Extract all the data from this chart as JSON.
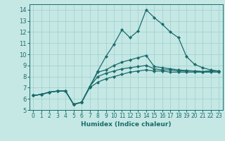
{
  "title": "",
  "xlabel": "Humidex (Indice chaleur)",
  "ylabel": "",
  "xlim": [
    -0.5,
    23.5
  ],
  "ylim": [
    5,
    14.5
  ],
  "yticks": [
    5,
    6,
    7,
    8,
    9,
    10,
    11,
    12,
    13,
    14
  ],
  "xticks": [
    0,
    1,
    2,
    3,
    4,
    5,
    6,
    7,
    8,
    9,
    10,
    11,
    12,
    13,
    14,
    15,
    16,
    17,
    18,
    19,
    20,
    21,
    22,
    23
  ],
  "bg_color": "#c5e8e5",
  "line_color": "#1a6b6b",
  "grid_color": "#9dcfcc",
  "lines": [
    [
      0,
      6.3,
      1,
      6.4,
      2,
      6.6,
      3,
      6.7,
      4,
      6.7,
      5,
      5.5,
      6,
      5.7,
      7,
      7.1,
      8,
      8.5,
      9,
      9.8,
      10,
      10.9,
      11,
      12.2,
      12,
      11.5,
      13,
      12.1,
      14,
      14.0,
      15,
      13.3,
      16,
      12.7,
      17,
      12.0,
      18,
      11.5,
      19,
      9.8,
      20,
      9.1,
      21,
      8.8,
      22,
      8.6,
      23,
      8.5
    ],
    [
      0,
      6.3,
      1,
      6.4,
      2,
      6.6,
      3,
      6.7,
      4,
      6.7,
      5,
      5.5,
      6,
      5.7,
      7,
      7.1,
      8,
      8.4,
      9,
      8.6,
      10,
      9.0,
      11,
      9.3,
      12,
      9.5,
      13,
      9.7,
      14,
      9.9,
      15,
      8.9,
      16,
      8.8,
      17,
      8.7,
      18,
      8.6,
      19,
      8.55,
      20,
      8.5,
      21,
      8.45,
      22,
      8.5,
      23,
      8.5
    ],
    [
      0,
      6.3,
      1,
      6.4,
      2,
      6.6,
      3,
      6.7,
      4,
      6.7,
      5,
      5.5,
      6,
      5.7,
      7,
      7.1,
      8,
      8.0,
      9,
      8.3,
      10,
      8.5,
      11,
      8.7,
      12,
      8.8,
      13,
      8.9,
      14,
      9.0,
      15,
      8.7,
      16,
      8.6,
      17,
      8.6,
      18,
      8.5,
      19,
      8.5,
      20,
      8.5,
      21,
      8.45,
      22,
      8.5,
      23,
      8.5
    ],
    [
      0,
      6.3,
      1,
      6.4,
      2,
      6.6,
      3,
      6.7,
      4,
      6.7,
      5,
      5.5,
      6,
      5.7,
      7,
      7.0,
      8,
      7.5,
      9,
      7.8,
      10,
      8.0,
      11,
      8.2,
      12,
      8.4,
      13,
      8.5,
      14,
      8.6,
      15,
      8.5,
      16,
      8.5,
      17,
      8.4,
      18,
      8.4,
      19,
      8.4,
      20,
      8.4,
      21,
      8.4,
      22,
      8.4,
      23,
      8.4
    ]
  ],
  "xlabel_fontsize": 6.5,
  "tick_fontsize_x": 5.5,
  "tick_fontsize_y": 6.0,
  "linewidth": 0.9,
  "markersize": 2.2
}
